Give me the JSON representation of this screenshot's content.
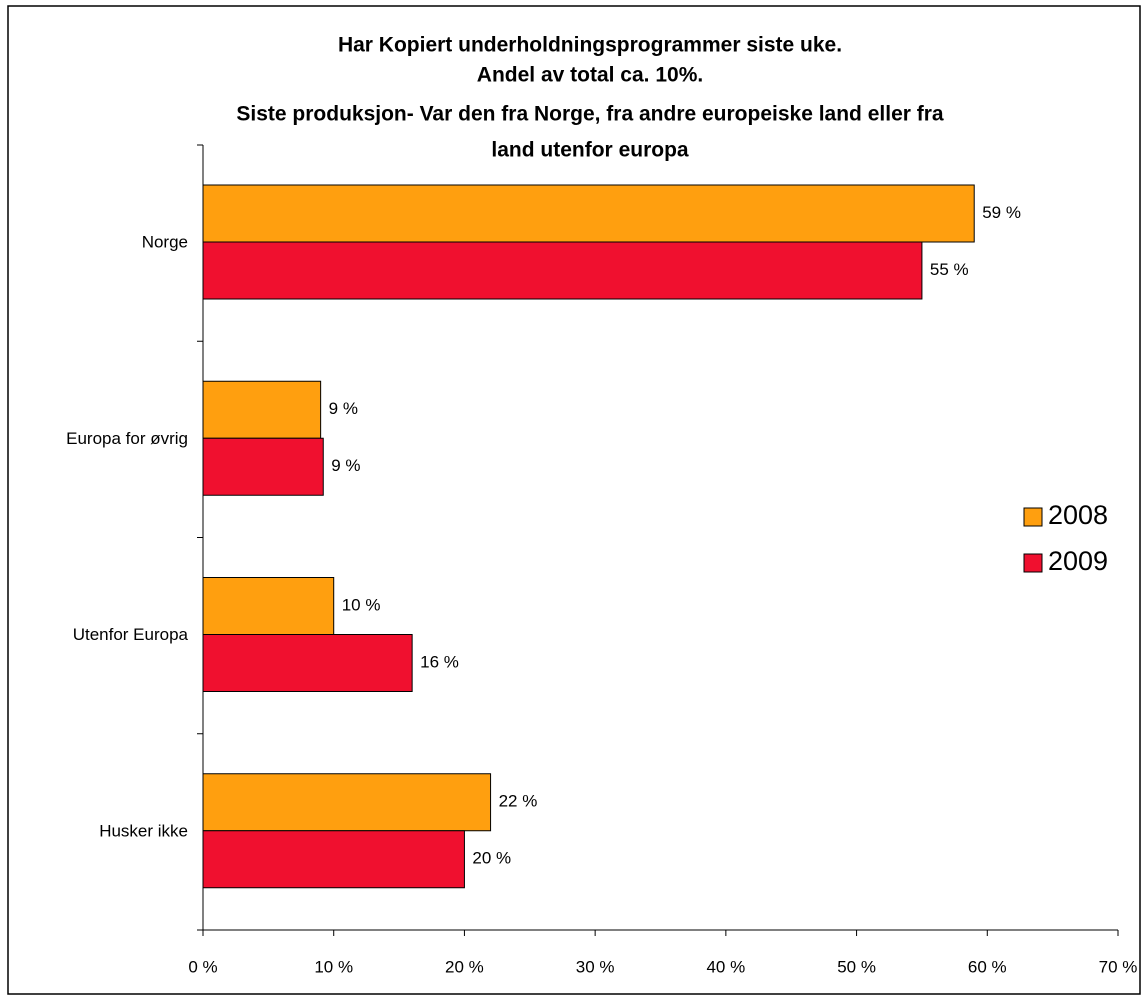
{
  "chart_data": {
    "type": "bar",
    "orientation": "horizontal",
    "title": [
      "Har Kopiert underholdningsprogrammer siste uke.",
      "Andel av total ca. 10%.",
      "Siste produksjon- Var den fra Norge, fra andre europeiske land eller fra",
      "land utenfor europa"
    ],
    "categories": [
      "Norge",
      "Europa for øvrig",
      "Utenfor Europa",
      "Husker ikke"
    ],
    "series": [
      {
        "name": "2008",
        "color": "#ff9f0f",
        "values": [
          59,
          9,
          10,
          22
        ],
        "value_labels": [
          "59 %",
          "9 %",
          "10 %",
          "22 %"
        ]
      },
      {
        "name": "2009",
        "color": "#f0102f",
        "values": [
          55,
          9.2,
          16,
          20
        ],
        "value_labels": [
          "55 %",
          "9 %",
          "16 %",
          "20 %"
        ]
      }
    ],
    "xlim": [
      0,
      70
    ],
    "xticks": [
      {
        "value": 0,
        "label": "0 %"
      },
      {
        "value": 10,
        "label": "10 %"
      },
      {
        "value": 20,
        "label": "20 %"
      },
      {
        "value": 30,
        "label": "30 %"
      },
      {
        "value": 40,
        "label": "40 %"
      },
      {
        "value": 50,
        "label": "50 %"
      },
      {
        "value": 60,
        "label": "60 %"
      },
      {
        "value": 70,
        "label": "70 %"
      }
    ],
    "legend": "right"
  }
}
